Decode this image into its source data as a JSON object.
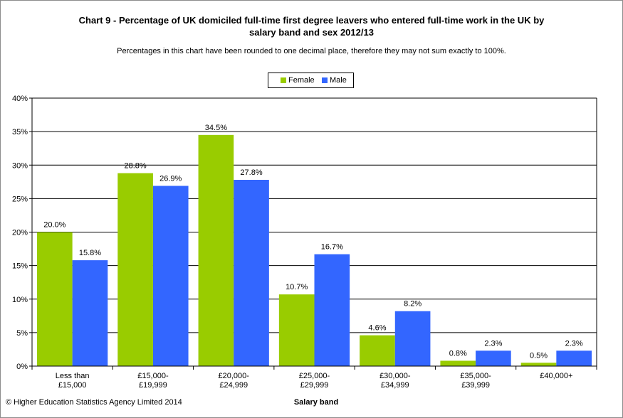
{
  "chart_data": {
    "type": "bar",
    "title_line1": "Chart 9 - Percentage of UK domiciled full-time first  degree leavers who entered full-time work in the UK by",
    "title_line2": "salary band and sex 2012/13",
    "subtitle": "Percentages in this chart have been rounded to one decimal place, therefore they may not sum exactly to 100%.",
    "xlabel": "Salary band",
    "ylabel": "",
    "ylim": [
      0,
      40
    ],
    "yticks": [
      "0%",
      "5%",
      "10%",
      "15%",
      "20%",
      "25%",
      "30%",
      "35%",
      "40%"
    ],
    "categories": [
      [
        "Less than",
        "£15,000"
      ],
      [
        "£15,000-",
        "£19,999"
      ],
      [
        "£20,000-",
        "£24,999"
      ],
      [
        "£25,000-",
        "£29,999"
      ],
      [
        "£30,000-",
        "£34,999"
      ],
      [
        "£35,000-",
        "£39,999"
      ],
      [
        "£40,000+"
      ]
    ],
    "series": [
      {
        "name": "Female",
        "color": "#99cc00",
        "values": [
          20.0,
          28.8,
          34.5,
          10.7,
          4.6,
          0.8,
          0.5
        ],
        "labels": [
          "20.0%",
          "28.8%",
          "34.5%",
          "10.7%",
          "4.6%",
          "0.8%",
          "0.5%"
        ]
      },
      {
        "name": "Male",
        "color": "#3366ff",
        "values": [
          15.8,
          26.9,
          27.8,
          16.7,
          8.2,
          2.3,
          2.3
        ],
        "labels": [
          "15.8%",
          "26.9%",
          "27.8%",
          "16.7%",
          "8.2%",
          "2.3%",
          "2.3%"
        ]
      }
    ],
    "grid": true,
    "legend_position": "top-center"
  },
  "footer": {
    "copyright": "© Higher Education Statistics Agency Limited 2014"
  }
}
